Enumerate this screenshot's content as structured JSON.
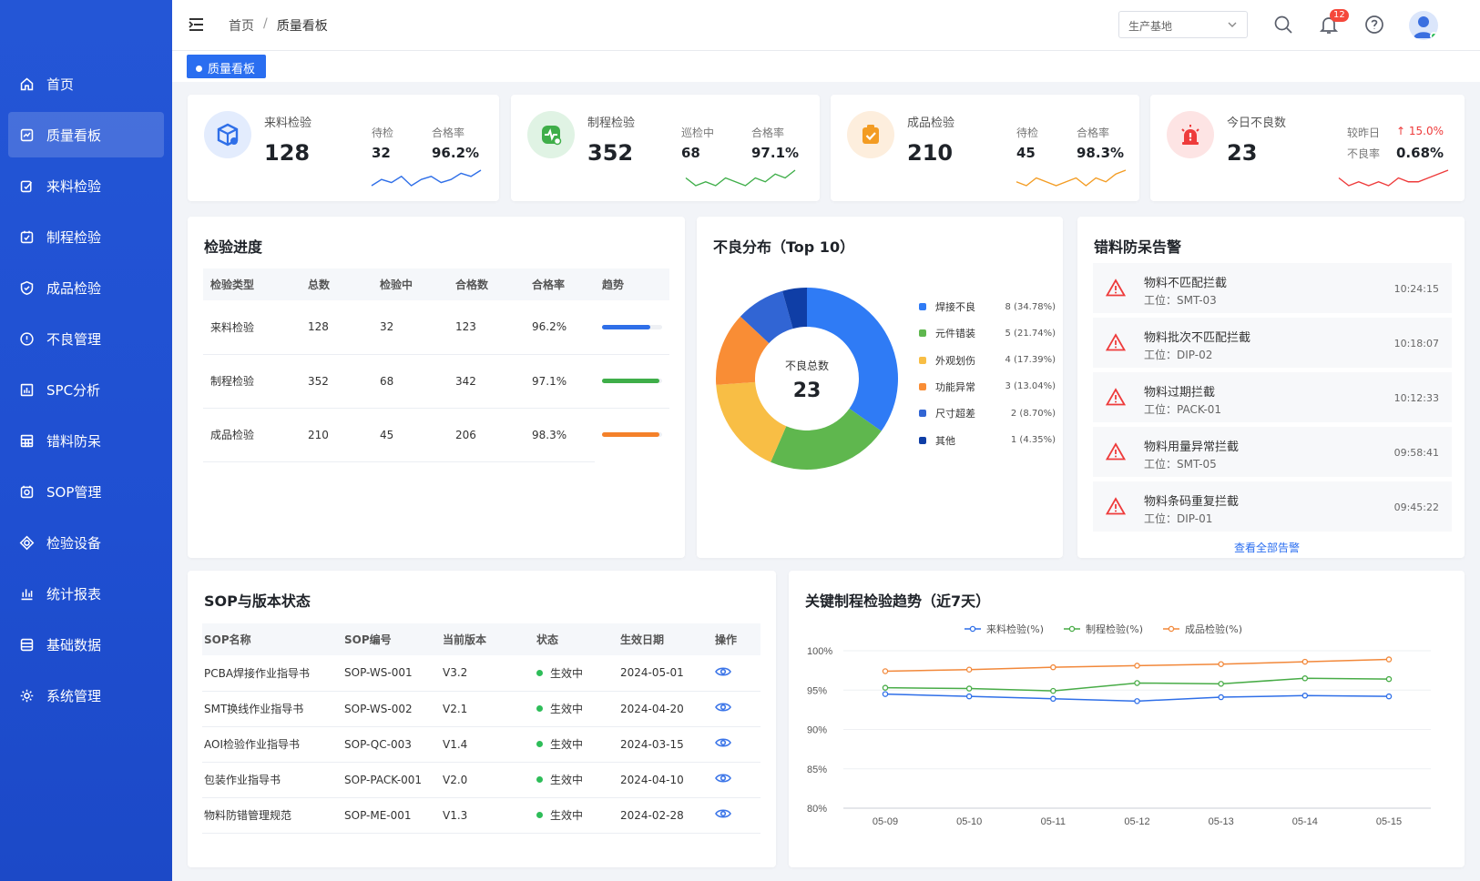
{
  "sidebar": {
    "items": [
      {
        "label": "首页",
        "icon": "home-icon"
      },
      {
        "label": "质量看板",
        "icon": "dashboard-icon",
        "active": true
      },
      {
        "label": "来料检验",
        "icon": "incoming-icon"
      },
      {
        "label": "制程检验",
        "icon": "process-icon"
      },
      {
        "label": "成品检验",
        "icon": "shield-icon"
      },
      {
        "label": "不良管理",
        "icon": "warning-circle-icon"
      },
      {
        "label": "SPC分析",
        "icon": "spc-icon"
      },
      {
        "label": "错料防呆",
        "icon": "grid-icon"
      },
      {
        "label": "SOP管理",
        "icon": "sop-icon"
      },
      {
        "label": "检验设备",
        "icon": "device-icon"
      },
      {
        "label": "统计报表",
        "icon": "bar-chart-icon"
      },
      {
        "label": "基础数据",
        "icon": "database-icon"
      },
      {
        "label": "系统管理",
        "icon": "gear-icon"
      }
    ]
  },
  "header": {
    "breadcrumb": {
      "home": "首页",
      "sep": "/",
      "current": "质量看板"
    },
    "factory_select": "生产基地",
    "notification_count": "12"
  },
  "tabs": [
    {
      "label": "质量看板"
    }
  ],
  "kpis": [
    {
      "title": "来料检验",
      "value": "128",
      "sub1_label": "待检",
      "sub1_value": "32",
      "sub2_label": "合格率",
      "sub2_value": "96.2%",
      "color": "#2f6fe8",
      "spark": [
        3,
        5,
        4,
        6,
        3,
        5,
        6,
        4,
        5,
        7,
        6,
        8
      ]
    },
    {
      "title": "制程检验",
      "value": "352",
      "sub1_label": "巡检中",
      "sub1_value": "68",
      "sub2_label": "合格率",
      "sub2_value": "97.1%",
      "color": "#3fae49",
      "spark": [
        5,
        3,
        4,
        3,
        5,
        4,
        3,
        5,
        4,
        6,
        5,
        7
      ]
    },
    {
      "title": "成品检验",
      "value": "210",
      "sub1_label": "待检",
      "sub1_value": "45",
      "sub2_label": "合格率",
      "sub2_value": "98.3%",
      "color": "#f39c23",
      "spark": [
        4,
        3,
        5,
        4,
        3,
        4,
        5,
        3,
        5,
        4,
        6,
        7
      ]
    },
    {
      "title": "今日不良数",
      "value": "23",
      "sub1_label": "较昨日",
      "sub1_value": "↑ 15.0%",
      "sub2_label": "不良率",
      "sub2_value": "0.68%",
      "color": "#ee3b3b",
      "spark": [
        5,
        3,
        4,
        3,
        4,
        3,
        5,
        4,
        4,
        5,
        6,
        7
      ]
    }
  ],
  "progress": {
    "title": "检验进度",
    "columns": [
      "检验类型",
      "总数",
      "检验中",
      "合格数",
      "合格率",
      "趋势"
    ],
    "rows": [
      {
        "type": "来料检验",
        "total": "128",
        "inprogress": "32",
        "passed": "123",
        "rate": "96.2%",
        "trend": 0.8,
        "color": "#2f6fe8"
      },
      {
        "type": "制程检验",
        "total": "352",
        "inprogress": "68",
        "passed": "342",
        "rate": "97.1%",
        "trend": 0.95,
        "color": "#3fae49"
      },
      {
        "type": "成品检验",
        "total": "210",
        "inprogress": "45",
        "passed": "206",
        "rate": "98.3%",
        "trend": 0.95,
        "color": "#f4812a"
      }
    ]
  },
  "defect": {
    "title": "不良分布（Top 10）",
    "center_label": "不良总数",
    "center_value": "23"
  },
  "chart_data": [
    {
      "type": "pie",
      "title": "不良分布（Top 10）",
      "categories": [
        "焊接不良",
        "元件错装",
        "外观划伤",
        "功能异常",
        "尺寸超差",
        "其他"
      ],
      "values": [
        8,
        5,
        4,
        3,
        2,
        1
      ],
      "labels": [
        "8 (34.78%)",
        "5 (21.74%)",
        "4 (17.39%)",
        "3 (13.04%)",
        "2 (8.70%)",
        "1 (4.35%)"
      ],
      "colors": [
        "#2f7bf5",
        "#5fb74e",
        "#f8be45",
        "#f98d35",
        "#3165d4",
        "#0f3ea6"
      ],
      "legend": "right"
    },
    {
      "type": "line",
      "title": "关键制程检验趋势（近7天）",
      "categories": [
        "05-09",
        "05-10",
        "05-11",
        "05-12",
        "05-13",
        "05-14",
        "05-15"
      ],
      "ylim": [
        80,
        100
      ],
      "yticks": [
        "100%",
        "95%",
        "90%",
        "85%",
        "80%"
      ],
      "grid": true,
      "legend": "top",
      "series": [
        {
          "name": "来料检验(%)",
          "color": "#2f6fe8",
          "values": [
            94.5,
            94.2,
            93.9,
            93.6,
            94.1,
            94.3,
            94.2
          ]
        },
        {
          "name": "制程检验(%)",
          "color": "#48ac47",
          "values": [
            95.3,
            95.2,
            94.9,
            95.9,
            95.8,
            96.5,
            96.4
          ]
        },
        {
          "name": "成品检验(%)",
          "color": "#f2883a",
          "values": [
            97.4,
            97.6,
            97.9,
            98.1,
            98.3,
            98.6,
            98.9
          ]
        }
      ]
    }
  ],
  "alerts": {
    "title": "错料防呆告警",
    "items": [
      {
        "title": "物料不匹配拦截",
        "station": "工位：SMT-03",
        "time": "10:24:15"
      },
      {
        "title": "物料批次不匹配拦截",
        "station": "工位：DIP-02",
        "time": "10:18:07"
      },
      {
        "title": "物料过期拦截",
        "station": "工位：PACK-01",
        "time": "10:12:33"
      },
      {
        "title": "物料用量异常拦截",
        "station": "工位：SMT-05",
        "time": "09:58:41"
      },
      {
        "title": "物料条码重复拦截",
        "station": "工位：DIP-01",
        "time": "09:45:22"
      }
    ],
    "view_all": "查看全部告警"
  },
  "sop": {
    "title": "SOP与版本状态",
    "columns": [
      "SOP名称",
      "SOP编号",
      "当前版本",
      "状态",
      "生效日期",
      "操作"
    ],
    "rows": [
      {
        "name": "PCBA焊接作业指导书",
        "code": "SOP-WS-001",
        "version": "V3.2",
        "status": "生效中",
        "date": "2024-05-01"
      },
      {
        "name": "SMT换线作业指导书",
        "code": "SOP-WS-002",
        "version": "V2.1",
        "status": "生效中",
        "date": "2024-04-20"
      },
      {
        "name": "AOI检验作业指导书",
        "code": "SOP-QC-003",
        "version": "V1.4",
        "status": "生效中",
        "date": "2024-03-15"
      },
      {
        "name": "包装作业指导书",
        "code": "SOP-PACK-001",
        "version": "V2.0",
        "status": "生效中",
        "date": "2024-04-10"
      },
      {
        "name": "物料防错管理规范",
        "code": "SOP-ME-001",
        "version": "V1.3",
        "status": "生效中",
        "date": "2024-02-28"
      }
    ]
  },
  "trend": {
    "title": "关键制程检验趋势（近7天）"
  }
}
